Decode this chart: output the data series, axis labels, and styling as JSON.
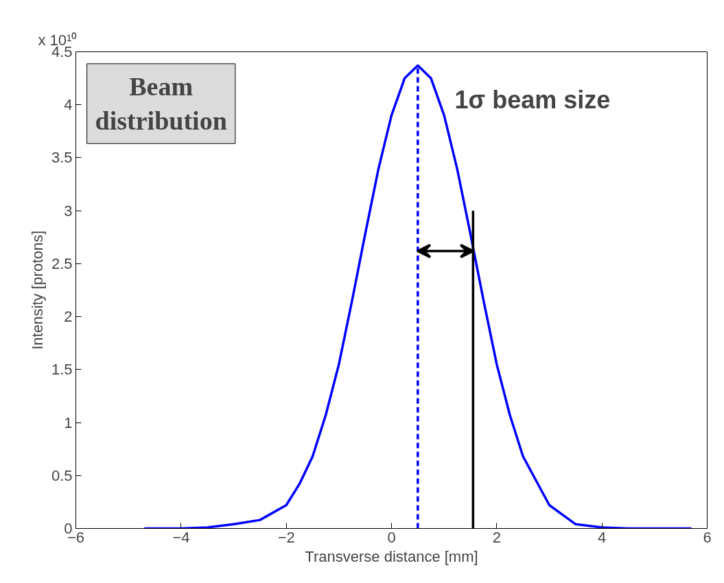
{
  "chart_data": {
    "type": "line",
    "xlabel": "Transverse distance [mm]",
    "ylabel": "Intensity [protons]",
    "annotations": [
      "x 10¹⁰",
      "Beam distribution",
      "1σ beam size"
    ],
    "xlim": [
      -6,
      6
    ],
    "xticks": [
      -6,
      -4,
      -2,
      0,
      2,
      4,
      6
    ],
    "ylim": [
      0,
      4.5
    ],
    "yticks": [
      0,
      0.5,
      1,
      1.5,
      2,
      2.5,
      3,
      3.5,
      4,
      4.5
    ],
    "grid": false,
    "series": [
      {
        "color": "#0000ff",
        "x": [
          -4.7,
          -4,
          -3.5,
          -3,
          -2.5,
          -2,
          -1.75,
          -1.5,
          -1.25,
          -1,
          -0.75,
          -0.5,
          -0.25,
          0,
          0.25,
          0.5,
          0.75,
          1,
          1.25,
          1.5,
          1.75,
          2,
          2.25,
          2.5,
          3,
          3.5,
          4,
          4.5,
          5,
          5.7
        ],
        "values": [
          0,
          0,
          0.01,
          0.04,
          0.08,
          0.22,
          0.42,
          0.68,
          1.07,
          1.55,
          2.15,
          2.78,
          3.39,
          3.9,
          4.25,
          4.37,
          4.25,
          3.9,
          3.39,
          2.78,
          2.15,
          1.55,
          1.07,
          0.68,
          0.22,
          0.04,
          0.01,
          0,
          0,
          0
        ]
      },
      {
        "type": "line",
        "color": "#0000ff",
        "line_style": "dashed",
        "x": [
          0.5,
          0.5
        ],
        "values": [
          0,
          4.37
        ]
      },
      {
        "type": "line",
        "color": "#000000",
        "x": [
          1.55,
          1.55
        ],
        "values": [
          0,
          3
        ]
      }
    ]
  }
}
